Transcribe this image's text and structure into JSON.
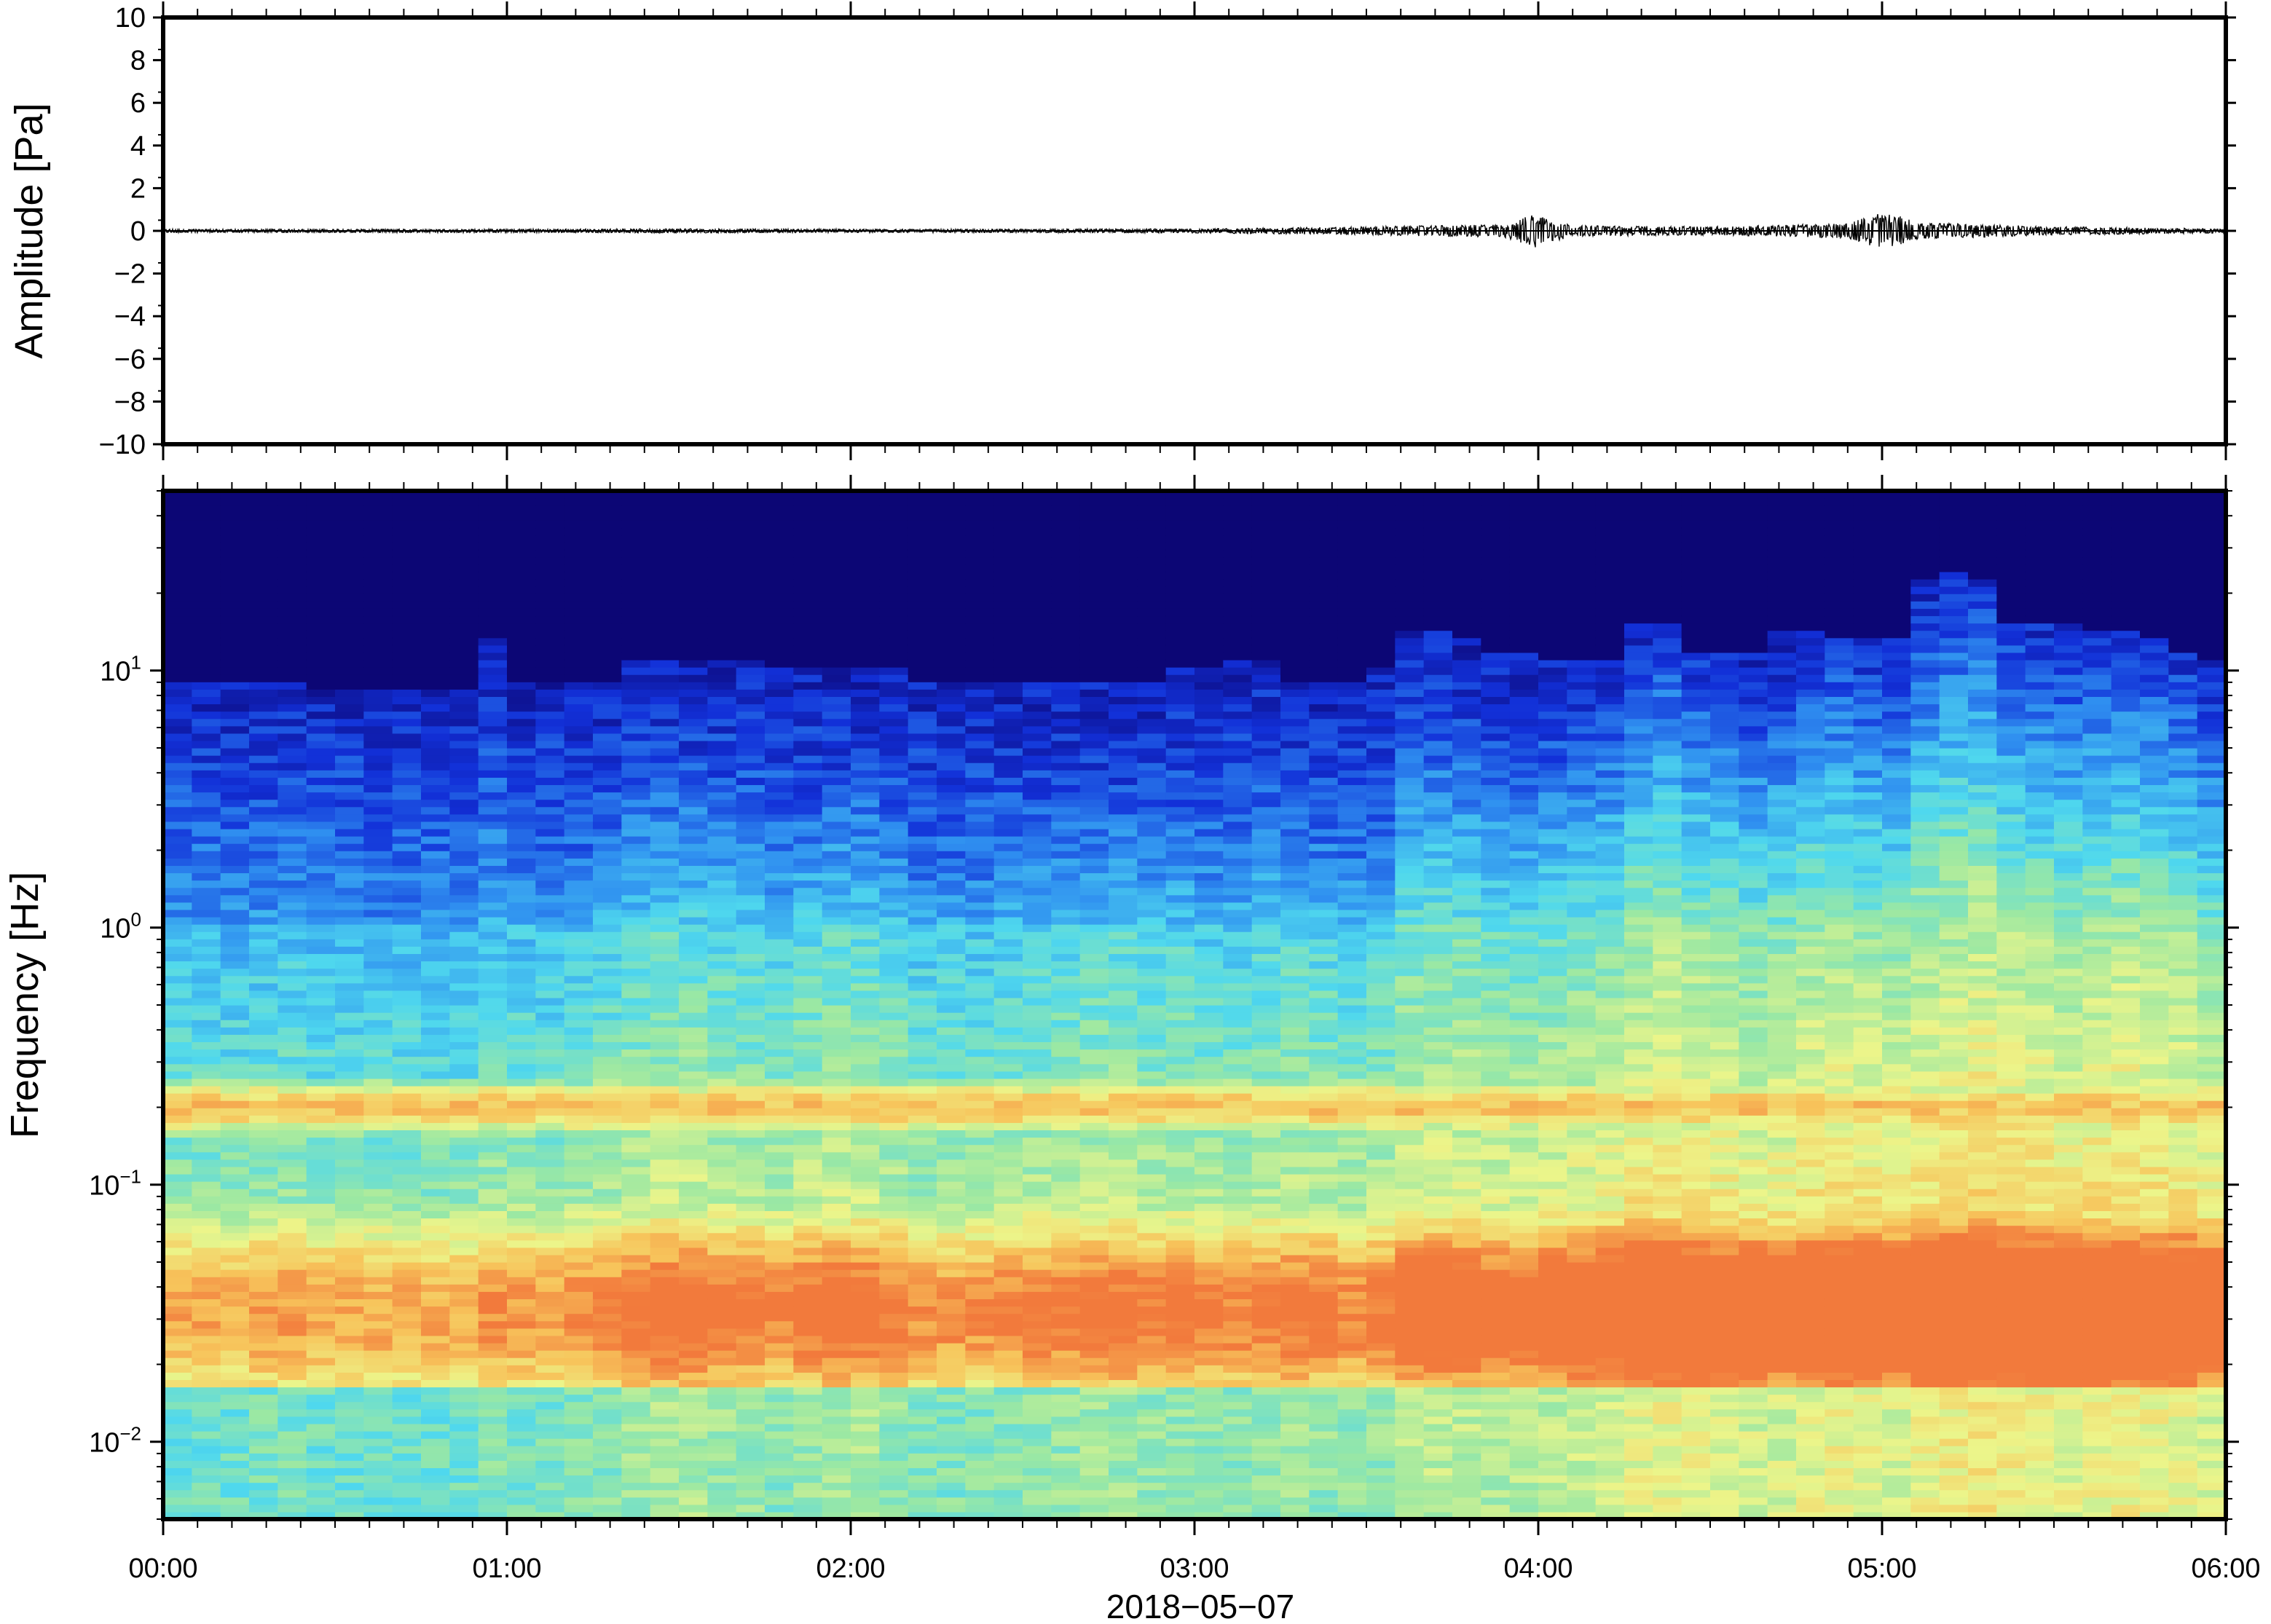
{
  "chart_data": [
    {
      "type": "line",
      "panel": "waveform",
      "ylabel": "Amplitude [Pa]",
      "ylim": [
        -10,
        10
      ],
      "yticks": [
        "10",
        "8",
        "6",
        "4",
        "2",
        "0",
        "−2",
        "−4",
        "−6",
        "−8",
        "−10"
      ],
      "ytick_values": [
        10,
        8,
        6,
        4,
        2,
        0,
        -2,
        -4,
        -6,
        -8,
        -10
      ],
      "xlim_hours": [
        0,
        6
      ],
      "series": [
        {
          "x_hours": [
            0.0,
            0.5,
            1.0,
            1.5,
            2.0,
            2.5,
            3.0,
            3.5,
            3.9,
            3.99,
            4.1,
            4.5,
            4.9,
            5.0,
            5.05,
            5.1,
            5.5,
            6.0
          ],
          "envelope": [
            0.08,
            0.08,
            0.08,
            0.1,
            0.08,
            0.08,
            0.1,
            0.2,
            0.3,
            0.8,
            0.25,
            0.2,
            0.35,
            0.9,
            0.7,
            0.4,
            0.2,
            0.1
          ]
        }
      ]
    },
    {
      "type": "heatmap",
      "panel": "spectrogram",
      "ylabel": "Frequency [Hz]",
      "yscale": "log",
      "ylim": [
        0.005,
        50
      ],
      "yticks": [
        {
          "value": 10,
          "base": "10",
          "exp": "1"
        },
        {
          "value": 1,
          "base": "10",
          "exp": "0"
        },
        {
          "value": 0.1,
          "base": "10",
          "exp": "−1"
        },
        {
          "value": 0.01,
          "base": "10",
          "exp": "−2"
        }
      ],
      "xlim_hours": [
        0,
        6
      ],
      "xticks": [
        "00:00",
        "01:00",
        "02:00",
        "03:00",
        "04:00",
        "05:00",
        "06:00"
      ],
      "xlabel": "2018−05−07",
      "colormap": [
        "#0c0675",
        "#1230d8",
        "#2f8ff0",
        "#4fd8ee",
        "#9be8a3",
        "#ecf58a",
        "#f7c45b",
        "#f27a3c"
      ],
      "time_bins": 72,
      "upper_cutoff_hz": [
        9,
        9,
        9,
        9,
        9,
        8.5,
        8.5,
        8.5,
        8.5,
        8.5,
        8.5,
        13,
        9,
        9,
        9,
        9,
        11,
        11,
        11,
        11,
        11,
        10,
        10,
        10,
        10,
        10,
        9,
        9,
        9,
        9,
        9,
        9,
        9,
        9,
        9,
        10,
        10,
        11,
        11,
        9,
        9,
        9,
        10,
        14,
        14,
        13,
        12,
        12,
        11,
        11,
        11,
        15,
        15,
        12,
        12,
        12,
        14,
        14,
        13,
        13,
        13,
        22,
        24,
        22,
        15,
        15,
        15,
        14,
        14,
        13,
        12,
        11
      ],
      "activity": [
        0.2,
        0.2,
        0.2,
        0.25,
        0.25,
        0.2,
        0.2,
        0.2,
        0.2,
        0.2,
        0.2,
        0.3,
        0.25,
        0.25,
        0.3,
        0.35,
        0.45,
        0.5,
        0.5,
        0.45,
        0.4,
        0.35,
        0.45,
        0.5,
        0.5,
        0.4,
        0.3,
        0.3,
        0.3,
        0.35,
        0.4,
        0.4,
        0.45,
        0.45,
        0.4,
        0.4,
        0.35,
        0.35,
        0.4,
        0.45,
        0.4,
        0.35,
        0.4,
        0.6,
        0.6,
        0.6,
        0.55,
        0.55,
        0.6,
        0.65,
        0.7,
        0.8,
        0.85,
        0.8,
        0.75,
        0.7,
        0.7,
        0.8,
        0.85,
        0.8,
        0.75,
        0.85,
        0.9,
        0.95,
        0.9,
        0.85,
        0.8,
        0.85,
        0.9,
        0.85,
        0.8,
        0.7
      ]
    }
  ]
}
